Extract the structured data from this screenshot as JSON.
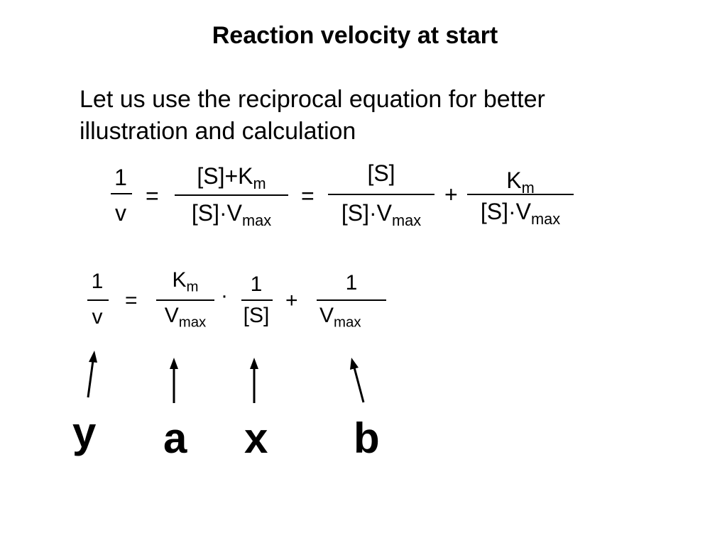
{
  "slide": {
    "title": "Reaction velocity at start",
    "intro": "Let us use the reciprocal equation for better illustration and calculation"
  },
  "equation1": {
    "lhs_num": "1",
    "lhs_den": "v",
    "eq1": "=",
    "frac1_num_a": "[S]+K",
    "frac1_num_sub": "m",
    "frac1_den_a": "[S]·V",
    "frac1_den_sub": "max",
    "eq2": "=",
    "frac2_num": "[S]",
    "frac2_den_a": "[S]·V",
    "frac2_den_sub": "max",
    "plus": "+",
    "frac3_num_a": "K",
    "frac3_num_sub": "m",
    "frac3_den_a": "[S]·V",
    "frac3_den_sub": "max"
  },
  "equation2": {
    "lhs_num": "1",
    "lhs_den": "v",
    "eq": "=",
    "a_num_a": "K",
    "a_num_sub": "m",
    "a_den_a": "V",
    "a_den_sub": "max",
    "dot": "·",
    "x_num": "1",
    "x_den": "[S]",
    "plus": "+",
    "b_num": "1",
    "b_den_a": "V",
    "b_den_sub": "max"
  },
  "labels": {
    "y": "y",
    "a": "a",
    "x": "x",
    "b": "b"
  }
}
